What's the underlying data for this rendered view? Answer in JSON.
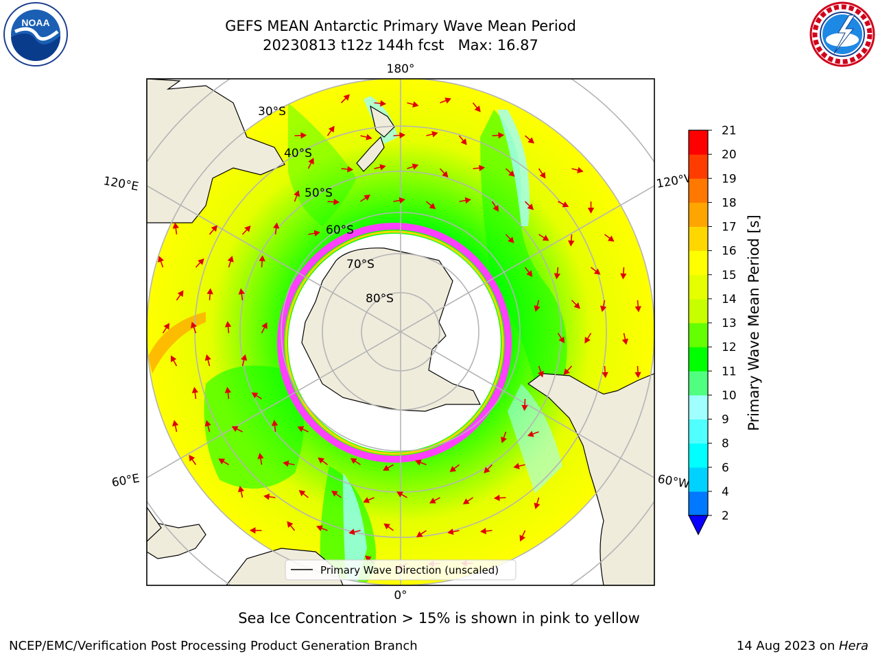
{
  "title": "GEFS MEAN Antarctic Primary Wave Mean Period",
  "subtitle": "20230813 t12z 144h fcst   Max: 16.87",
  "logos": {
    "noaa_text": "NOAA",
    "noaa_icon": "noaa-logo-icon",
    "nws_icon": "nws-logo-icon"
  },
  "map": {
    "projection": "south-polar-stereographic",
    "lat_labels": [
      "30°S",
      "40°S",
      "50°S",
      "60°S",
      "70°S",
      "80°S"
    ],
    "lon_labels": {
      "top": "180°",
      "bottom": "0°",
      "left_upper": "120°E",
      "left_lower": "60°E",
      "right_upper": "120°W",
      "right_lower": "60°W"
    },
    "legend": "Primary Wave Direction (unscaled)",
    "colors": {
      "land": "#efecdc",
      "ocean_base": "#ffff00",
      "arrows": "#e00000",
      "ice_edge": "#ff40ff",
      "sea_ice": "#ffffff"
    }
  },
  "colorbar": {
    "label": "Primary Wave Mean Period [s]",
    "ticks": [
      "2",
      "4",
      "6",
      "8",
      "9",
      "10",
      "11",
      "12",
      "13",
      "14",
      "15",
      "16",
      "17",
      "18",
      "19",
      "20",
      "21"
    ],
    "colors": [
      "#0a00ff",
      "#0078ff",
      "#00d2ff",
      "#00ffff",
      "#50ffff",
      "#a0ffff",
      "#50ff80",
      "#00ff00",
      "#64ff00",
      "#c8ff00",
      "#e6ff00",
      "#ffff00",
      "#ffd700",
      "#ffa500",
      "#ff7800",
      "#ff3c00",
      "#ff0000"
    ]
  },
  "caption": "Sea Ice Concentration > 15% is shown in pink to yellow",
  "footer": {
    "left": "NCEP/EMC/Verification Post Processing Product Generation Branch",
    "right_date": "14 Aug 2023 on ",
    "right_host": "Hera"
  }
}
